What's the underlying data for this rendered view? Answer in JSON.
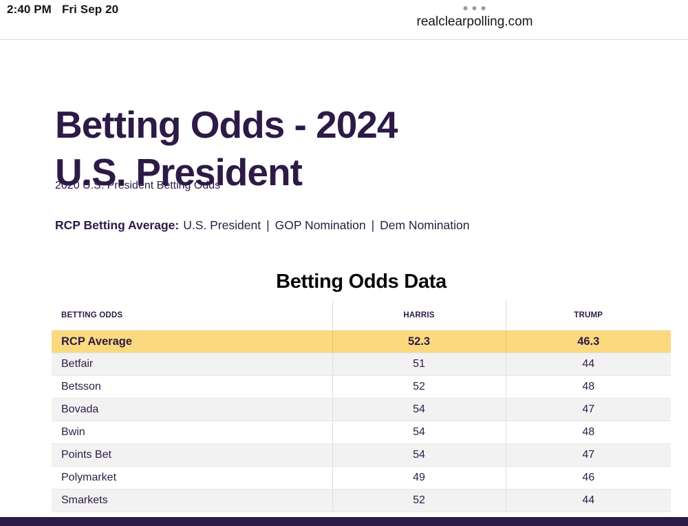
{
  "status_bar": {
    "time": "2:40 PM",
    "date": "Fri Sep 20",
    "menu_icon": "ellipsis-icon",
    "url": "realclearpolling.com"
  },
  "page": {
    "title_line1": "Betting Odds - 2024",
    "title_line2": "U.S. President",
    "subtitle": "2020 U.S. President Betting Odds",
    "nav": {
      "label": "RCP Betting Average:",
      "separator": "|",
      "links": [
        "U.S. President",
        "GOP Nomination",
        "Dem Nomination"
      ]
    }
  },
  "table": {
    "title": "Betting Odds Data",
    "columns": [
      "BETTING ODDS",
      "HARRIS",
      "TRUMP"
    ],
    "rows": [
      {
        "name": "RCP Average",
        "harris": "52.3",
        "trump": "46.3",
        "highlight": true
      },
      {
        "name": "Betfair",
        "harris": "51",
        "trump": "44"
      },
      {
        "name": "Betsson",
        "harris": "52",
        "trump": "48"
      },
      {
        "name": "Bovada",
        "harris": "54",
        "trump": "47"
      },
      {
        "name": "Bwin",
        "harris": "54",
        "trump": "48"
      },
      {
        "name": "Points Bet",
        "harris": "54",
        "trump": "47"
      },
      {
        "name": "Polymarket",
        "harris": "49",
        "trump": "46"
      },
      {
        "name": "Smarkets",
        "harris": "52",
        "trump": "44"
      }
    ]
  },
  "colors": {
    "accent_purple": "#2d1a47",
    "highlight_yellow": "#fbd97f",
    "row_alt_gray": "#f2f2f2",
    "bottom_bar": "#2d1a47"
  }
}
